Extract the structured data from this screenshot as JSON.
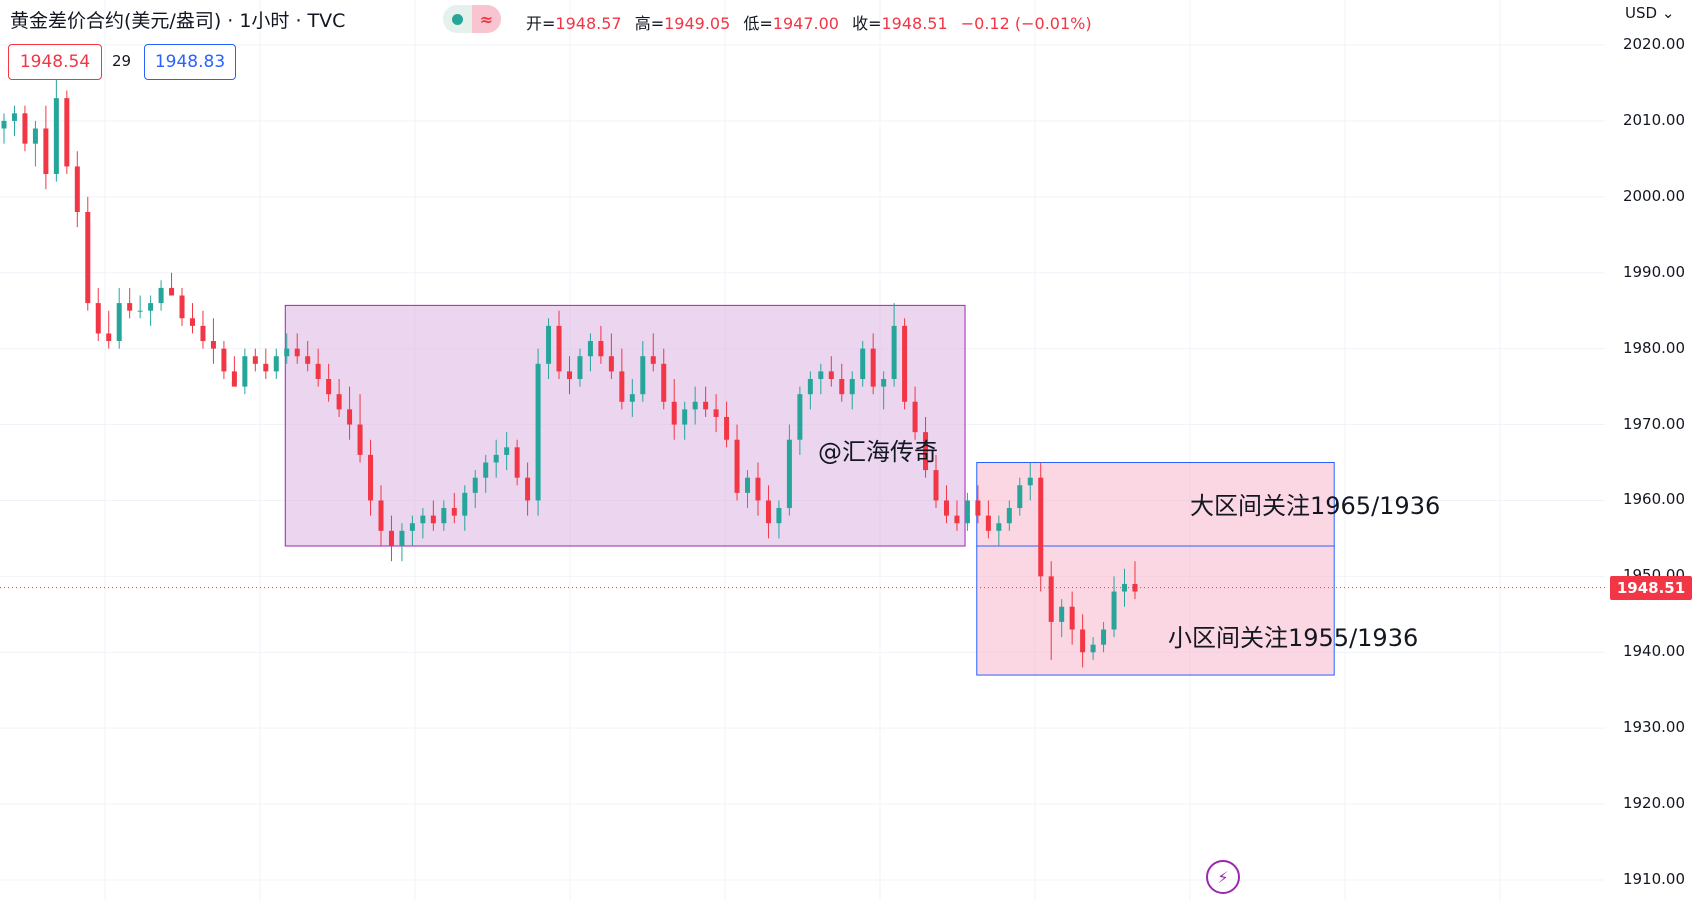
{
  "header": {
    "title": "黄金差价合约(美元/盎司) · 1小时 · TVC",
    "ohlc": {
      "open_label": "开=",
      "open": "1948.57",
      "high_label": "高=",
      "high": "1949.05",
      "low_label": "低=",
      "low": "1947.00",
      "close_label": "收=",
      "close": "1948.51",
      "change": "−0.12 (−0.01%)"
    },
    "bid": "1948.54",
    "spread": "29",
    "ask": "1948.83",
    "currency": "USD",
    "currency_icon": "chevron-down-icon"
  },
  "axis": {
    "ticks": [
      "2020.00",
      "2010.00",
      "2000.00",
      "1990.00",
      "1980.00",
      "1970.00",
      "1960.00",
      "1950.00",
      "1940.00",
      "1930.00",
      "1920.00",
      "1910.00"
    ],
    "current_price": "1948.51"
  },
  "annotations": {
    "watermark": "@汇海传奇",
    "big_range": "大区间关注1965/1936",
    "small_range": "小区间关注1955/1936"
  },
  "colors": {
    "up": "#26a69a",
    "down": "#f23645",
    "range_box_fill": "#e1bee7",
    "range_box_stroke": "#9c27b0",
    "pink_box_fill": "#f8bbd0",
    "pink_box_stroke": "#2962ff"
  },
  "chart_data": {
    "type": "candlestick",
    "interval": "1小时",
    "ylim": [
      1907,
      2025
    ],
    "y_ticks": [
      1910,
      1920,
      1930,
      1940,
      1950,
      1960,
      1970,
      1980,
      1990,
      2000,
      2010,
      2020
    ],
    "current_price": 1948.51,
    "candles": [
      [
        2009,
        2011,
        2007,
        2010
      ],
      [
        2010,
        2012,
        2008,
        2011
      ],
      [
        2011,
        2012,
        2006,
        2007
      ],
      [
        2007,
        2010,
        2004,
        2009
      ],
      [
        2009,
        2012,
        2001,
        2003
      ],
      [
        2003,
        2016,
        2002,
        2013
      ],
      [
        2013,
        2014,
        2003,
        2004
      ],
      [
        2004,
        2006,
        1996,
        1998
      ],
      [
        1998,
        2000,
        1985,
        1986
      ],
      [
        1986,
        1988,
        1981,
        1982
      ],
      [
        1982,
        1985,
        1980,
        1981
      ],
      [
        1981,
        1988,
        1980,
        1986
      ],
      [
        1986,
        1988,
        1984,
        1985
      ],
      [
        1985,
        1987,
        1984,
        1985
      ],
      [
        1985,
        1987,
        1983,
        1986
      ],
      [
        1986,
        1989,
        1985,
        1988
      ],
      [
        1988,
        1990,
        1987,
        1987
      ],
      [
        1987,
        1988,
        1983,
        1984
      ],
      [
        1984,
        1986,
        1982,
        1983
      ],
      [
        1983,
        1985,
        1980,
        1981
      ],
      [
        1981,
        1984,
        1978,
        1980
      ],
      [
        1980,
        1981,
        1976,
        1977
      ],
      [
        1977,
        1979,
        1975,
        1975
      ],
      [
        1975,
        1980,
        1974,
        1979
      ],
      [
        1979,
        1980,
        1977,
        1978
      ],
      [
        1978,
        1980,
        1976,
        1977
      ],
      [
        1977,
        1980,
        1976,
        1979
      ],
      [
        1979,
        1982,
        1978,
        1980
      ],
      [
        1980,
        1982,
        1978,
        1979
      ],
      [
        1979,
        1981,
        1977,
        1978
      ],
      [
        1978,
        1980,
        1975,
        1976
      ],
      [
        1976,
        1978,
        1973,
        1974
      ],
      [
        1974,
        1976,
        1971,
        1972
      ],
      [
        1972,
        1975,
        1968,
        1970
      ],
      [
        1970,
        1974,
        1965,
        1966
      ],
      [
        1966,
        1968,
        1958,
        1960
      ],
      [
        1960,
        1962,
        1954,
        1956
      ],
      [
        1956,
        1958,
        1952,
        1954
      ],
      [
        1954,
        1957,
        1952,
        1956
      ],
      [
        1956,
        1958,
        1954,
        1957
      ],
      [
        1957,
        1959,
        1955,
        1958
      ],
      [
        1958,
        1960,
        1956,
        1957
      ],
      [
        1957,
        1960,
        1956,
        1959
      ],
      [
        1959,
        1961,
        1957,
        1958
      ],
      [
        1958,
        1962,
        1956,
        1961
      ],
      [
        1961,
        1964,
        1959,
        1963
      ],
      [
        1963,
        1966,
        1961,
        1965
      ],
      [
        1965,
        1968,
        1963,
        1966
      ],
      [
        1966,
        1969,
        1964,
        1967
      ],
      [
        1967,
        1968,
        1962,
        1963
      ],
      [
        1963,
        1965,
        1958,
        1960
      ],
      [
        1960,
        1980,
        1958,
        1978
      ],
      [
        1978,
        1984,
        1976,
        1983
      ],
      [
        1983,
        1985,
        1976,
        1977
      ],
      [
        1977,
        1979,
        1974,
        1976
      ],
      [
        1976,
        1980,
        1975,
        1979
      ],
      [
        1979,
        1982,
        1977,
        1981
      ],
      [
        1981,
        1983,
        1978,
        1979
      ],
      [
        1979,
        1982,
        1976,
        1977
      ],
      [
        1977,
        1980,
        1972,
        1973
      ],
      [
        1973,
        1976,
        1971,
        1974
      ],
      [
        1974,
        1981,
        1973,
        1979
      ],
      [
        1979,
        1982,
        1977,
        1978
      ],
      [
        1978,
        1980,
        1972,
        1973
      ],
      [
        1973,
        1976,
        1968,
        1970
      ],
      [
        1970,
        1973,
        1968,
        1972
      ],
      [
        1972,
        1975,
        1970,
        1973
      ],
      [
        1973,
        1975,
        1971,
        1972
      ],
      [
        1972,
        1974,
        1969,
        1971
      ],
      [
        1971,
        1973,
        1967,
        1968
      ],
      [
        1968,
        1970,
        1960,
        1961
      ],
      [
        1961,
        1964,
        1959,
        1963
      ],
      [
        1963,
        1965,
        1958,
        1960
      ],
      [
        1960,
        1962,
        1955,
        1957
      ],
      [
        1957,
        1960,
        1955,
        1959
      ],
      [
        1959,
        1970,
        1958,
        1968
      ],
      [
        1968,
        1975,
        1966,
        1974
      ],
      [
        1974,
        1977,
        1972,
        1976
      ],
      [
        1976,
        1978,
        1974,
        1977
      ],
      [
        1977,
        1979,
        1975,
        1976
      ],
      [
        1976,
        1978,
        1973,
        1974
      ],
      [
        1974,
        1977,
        1972,
        1976
      ],
      [
        1976,
        1981,
        1975,
        1980
      ],
      [
        1980,
        1982,
        1974,
        1975
      ],
      [
        1975,
        1977,
        1972,
        1976
      ],
      [
        1976,
        1986,
        1975,
        1983
      ],
      [
        1983,
        1984,
        1972,
        1973
      ],
      [
        1973,
        1975,
        1968,
        1969
      ],
      [
        1969,
        1971,
        1963,
        1964
      ],
      [
        1964,
        1966,
        1959,
        1960
      ],
      [
        1960,
        1962,
        1957,
        1958
      ],
      [
        1958,
        1960,
        1956,
        1957
      ],
      [
        1957,
        1961,
        1956,
        1960
      ],
      [
        1960,
        1962,
        1957,
        1958
      ],
      [
        1958,
        1960,
        1955,
        1956
      ],
      [
        1956,
        1958,
        1954,
        1957
      ],
      [
        1957,
        1960,
        1956,
        1959
      ],
      [
        1959,
        1963,
        1958,
        1962
      ],
      [
        1962,
        1965,
        1960,
        1963
      ],
      [
        1963,
        1965,
        1948,
        1950
      ],
      [
        1950,
        1952,
        1939,
        1944
      ],
      [
        1944,
        1947,
        1942,
        1946
      ],
      [
        1946,
        1948,
        1941,
        1943
      ],
      [
        1943,
        1945,
        1938,
        1940
      ],
      [
        1940,
        1942,
        1939,
        1941
      ],
      [
        1941,
        1944,
        1940,
        1943
      ],
      [
        1943,
        1950,
        1942,
        1948
      ],
      [
        1948,
        1951,
        1946,
        1949
      ],
      [
        1949,
        1952,
        1947,
        1948
      ]
    ]
  }
}
